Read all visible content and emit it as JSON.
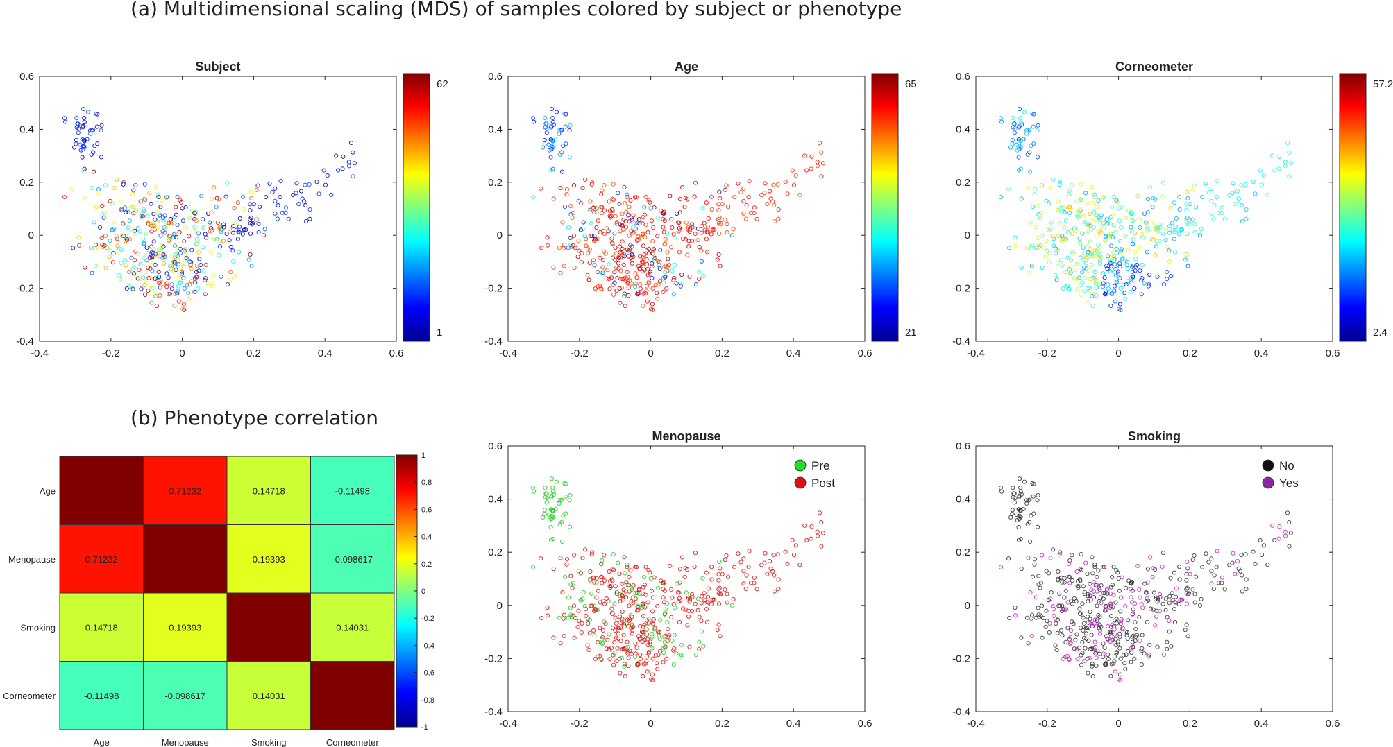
{
  "section_a": {
    "title": "(a) Multidimensional scaling (MDS) of samples colored by subject or phenotype"
  },
  "section_b": {
    "title": "(b) Phenotype correlation"
  },
  "chart_data": [
    {
      "type": "scatter",
      "title": "Subject",
      "color_by": "subject",
      "xlim": [
        -0.4,
        0.6
      ],
      "ylim": [
        -0.4,
        0.6
      ],
      "xticks": [
        -0.4,
        -0.2,
        0,
        0.2,
        0.4,
        0.6
      ],
      "yticks": [
        -0.4,
        -0.2,
        0,
        0.2,
        0.4,
        0.6
      ],
      "colorbar": {
        "colormap": "jet",
        "min_label": "1",
        "max_label": "62"
      },
      "n_points": 520
    },
    {
      "type": "scatter",
      "title": "Age",
      "color_by": "age",
      "xlim": [
        -0.4,
        0.6
      ],
      "ylim": [
        -0.4,
        0.6
      ],
      "xticks": [
        -0.4,
        -0.2,
        0,
        0.2,
        0.4,
        0.6
      ],
      "yticks": [
        -0.4,
        -0.2,
        0,
        0.2,
        0.4,
        0.6
      ],
      "colorbar": {
        "colormap": "jet",
        "min_label": "21",
        "max_label": "65"
      },
      "n_points": 520
    },
    {
      "type": "scatter",
      "title": "Corneometer",
      "color_by": "corneometer",
      "xlim": [
        -0.4,
        0.6
      ],
      "ylim": [
        -0.4,
        0.6
      ],
      "xticks": [
        -0.4,
        -0.2,
        0,
        0.2,
        0.4,
        0.6
      ],
      "yticks": [
        -0.4,
        -0.2,
        0,
        0.2,
        0.4,
        0.6
      ],
      "colorbar": {
        "colormap": "jet",
        "min_label": "2.4",
        "max_label": "57.2"
      },
      "n_points": 520
    },
    {
      "type": "heatmap",
      "title": "Phenotype correlation",
      "rows": [
        "Age",
        "Menopause",
        "Smoking",
        "Corneometer"
      ],
      "cols": [
        "Age",
        "Menopause",
        "Smoking",
        "Corneometer"
      ],
      "values": [
        [
          1,
          0.71232,
          0.14718,
          -0.11498
        ],
        [
          0.71232,
          1,
          0.19393,
          -0.098617
        ],
        [
          0.14718,
          0.19393,
          1,
          0.14031
        ],
        [
          -0.11498,
          -0.098617,
          0.14031,
          1
        ]
      ],
      "cell_labels": [
        [
          "",
          "0.71232",
          "0.14718",
          "-0.11498"
        ],
        [
          "0.71232",
          "",
          "0.19393",
          "-0.098617"
        ],
        [
          "0.14718",
          "0.19393",
          "",
          "0.14031"
        ],
        [
          "-0.11498",
          "-0.098617",
          "0.14031",
          ""
        ]
      ],
      "clim": [
        -1,
        1
      ],
      "colorbar_ticks": [
        {
          "v": 1,
          "label": "1"
        },
        {
          "v": 0.8,
          "label": "0.8"
        },
        {
          "v": 0.6,
          "label": "0.6"
        },
        {
          "v": 0.4,
          "label": "0.4"
        },
        {
          "v": 0.2,
          "label": "0.2"
        },
        {
          "v": 0,
          "label": "0"
        },
        {
          "v": -0.2,
          "label": "-0.2"
        },
        {
          "v": -0.4,
          "label": "-0.4"
        },
        {
          "v": -0.6,
          "label": "-0.6"
        },
        {
          "v": -0.8,
          "label": "-0.8"
        },
        {
          "v": -1,
          "label": "-1"
        }
      ]
    },
    {
      "type": "scatter",
      "title": "Menopause",
      "color_by": "menopause",
      "xlim": [
        -0.4,
        0.6
      ],
      "ylim": [
        -0.4,
        0.6
      ],
      "xticks": [
        -0.4,
        -0.2,
        0,
        0.2,
        0.4,
        0.6
      ],
      "yticks": [
        -0.4,
        -0.2,
        0,
        0.2,
        0.4,
        0.6
      ],
      "legend": {
        "placement": "top-right",
        "entries": [
          {
            "label": "Pre",
            "color": "#22dd22"
          },
          {
            "label": "Post",
            "color": "#dd1111"
          }
        ]
      },
      "n_points": 520
    },
    {
      "type": "scatter",
      "title": "Smoking",
      "color_by": "smoking",
      "xlim": [
        -0.4,
        0.6
      ],
      "ylim": [
        -0.4,
        0.6
      ],
      "xticks": [
        -0.4,
        -0.2,
        0,
        0.2,
        0.4,
        0.6
      ],
      "yticks": [
        -0.4,
        -0.2,
        0,
        0.2,
        0.4,
        0.6
      ],
      "legend": {
        "placement": "top-right",
        "entries": [
          {
            "label": "No",
            "color": "#111111"
          },
          {
            "label": "Yes",
            "color": "#8e24aa"
          }
        ]
      },
      "n_points": 520
    }
  ]
}
